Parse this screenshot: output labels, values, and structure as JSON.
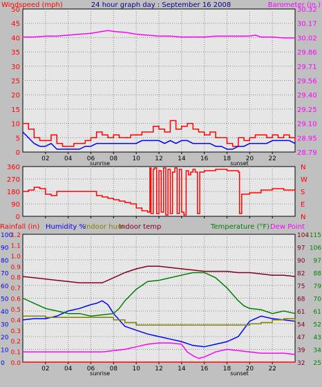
{
  "chart_data": [
    {
      "type": "line",
      "panel": "windspeed-barometer",
      "title": "24 hour graph day : September 16 2008",
      "ylabel_left": "Windspeed (mph)",
      "ylabel_right": "Barometer (in.)",
      "ylim_left": [
        0,
        50
      ],
      "ylim_right": [
        28.79,
        30.32
      ],
      "yticks_left": [
        "0",
        "5",
        "10",
        "15",
        "20",
        "25",
        "30",
        "35",
        "40",
        "45",
        "50"
      ],
      "yticks_right": [
        "28.79",
        "28.95",
        "29.10",
        "29.25",
        "29.40",
        "29.56",
        "29.71",
        "29.86",
        "30.02",
        "30.17",
        "30.32"
      ],
      "xticks": [
        "02",
        "04",
        "06",
        "08",
        "10",
        "12",
        "14",
        "16",
        "18",
        "20",
        "22"
      ],
      "x_markers": [
        {
          "label": "sunrise",
          "hour": 6.8
        },
        {
          "label": "sunset",
          "hour": 19.1
        }
      ],
      "series": [
        {
          "name": "Barometer",
          "axis": "right",
          "color": "#ff00ff",
          "x": [
            0,
            1,
            2,
            3,
            4,
            5,
            6,
            7,
            7.5,
            8,
            9,
            10,
            11,
            12,
            13,
            14,
            15,
            16,
            17,
            18,
            19,
            20,
            20.5,
            21,
            22,
            23,
            24
          ],
          "y": [
            30.02,
            30.02,
            30.03,
            30.03,
            30.04,
            30.05,
            30.06,
            30.08,
            30.09,
            30.08,
            30.07,
            30.05,
            30.04,
            30.03,
            30.03,
            30.02,
            30.02,
            30.02,
            30.03,
            30.03,
            30.03,
            30.03,
            30.04,
            30.02,
            30.02,
            30.01,
            30.01
          ]
        },
        {
          "name": "Wind Gust",
          "axis": "left",
          "color": "#ff0000",
          "x": [
            0,
            0.5,
            1,
            1.5,
            2,
            2.5,
            3,
            3.5,
            4,
            4.5,
            5,
            5.5,
            6,
            6.5,
            7,
            7.5,
            8,
            8.5,
            9,
            9.5,
            10,
            10.5,
            11,
            11.5,
            12,
            12.5,
            13,
            13.5,
            14,
            14.5,
            15,
            15.5,
            16,
            16.5,
            17,
            17.5,
            18,
            18.5,
            19,
            19.5,
            20,
            20.5,
            21,
            21.5,
            22,
            22.5,
            23,
            23.5,
            24
          ],
          "y": [
            10,
            8,
            5,
            4,
            4,
            6,
            3,
            2,
            2,
            3,
            3,
            4,
            5,
            7,
            6,
            5,
            6,
            5,
            5,
            6,
            6,
            7,
            7,
            9,
            8,
            7,
            11,
            8,
            9,
            10,
            8,
            7,
            6,
            7,
            5,
            5,
            3,
            2,
            5,
            4,
            5,
            6,
            6,
            5,
            6,
            5,
            6,
            5,
            4
          ]
        },
        {
          "name": "Wind Speed",
          "axis": "left",
          "color": "#0000ff",
          "x": [
            0,
            0.5,
            1,
            1.5,
            2,
            2.5,
            3,
            3.5,
            4,
            4.5,
            5,
            5.5,
            6,
            6.5,
            7,
            7.5,
            8,
            8.5,
            9,
            9.5,
            10,
            10.5,
            11,
            11.5,
            12,
            12.5,
            13,
            13.5,
            14,
            14.5,
            15,
            15.5,
            16,
            16.5,
            17,
            17.5,
            18,
            18.5,
            19,
            19.5,
            20,
            20.5,
            21,
            21.5,
            22,
            22.5,
            23,
            23.5,
            24
          ],
          "y": [
            7,
            5,
            3,
            2,
            2,
            3,
            1,
            1,
            1,
            1,
            1,
            2,
            2,
            3,
            3,
            3,
            3,
            3,
            3,
            3,
            3,
            4,
            4,
            4,
            4,
            3,
            4,
            3,
            4,
            4,
            3,
            3,
            3,
            3,
            2,
            2,
            1,
            1,
            2,
            2,
            3,
            3,
            3,
            3,
            4,
            4,
            4,
            4,
            3
          ]
        }
      ]
    },
    {
      "type": "line",
      "panel": "wind-direction",
      "ylim": [
        0,
        360
      ],
      "yticks_left": [
        "0",
        "90",
        "180",
        "270",
        "360"
      ],
      "yticks_right": [
        "N",
        "E",
        "S",
        "W",
        "N"
      ],
      "series": [
        {
          "name": "Wind Direction",
          "color": "#ff0000",
          "x": [
            0,
            0.5,
            1,
            1.5,
            2,
            2.5,
            3,
            4,
            5,
            6,
            6.5,
            7,
            7.5,
            8,
            8.5,
            9,
            9.5,
            10,
            10.5,
            11,
            11.2,
            11.3,
            11.5,
            11.6,
            11.8,
            12,
            12.2,
            12.4,
            12.6,
            12.8,
            13,
            13.2,
            13.4,
            13.6,
            13.8,
            14,
            14.2,
            14.4,
            14.6,
            14.8,
            15,
            15.2,
            15.4,
            15.6,
            16,
            17,
            18,
            18.5,
            19,
            19.1,
            19.3,
            20,
            21,
            22,
            23,
            24
          ],
          "y": [
            180,
            190,
            210,
            200,
            160,
            150,
            180,
            180,
            180,
            180,
            150,
            140,
            130,
            120,
            110,
            100,
            90,
            60,
            40,
            30,
            350,
            20,
            340,
            350,
            20,
            330,
            30,
            350,
            10,
            340,
            20,
            320,
            350,
            20,
            340,
            30,
            10,
            330,
            300,
            320,
            340,
            320,
            20,
            320,
            330,
            340,
            330,
            330,
            320,
            20,
            160,
            170,
            190,
            200,
            190,
            180
          ]
        }
      ]
    },
    {
      "type": "line",
      "panel": "rain-humidity-temperature",
      "legend_left": [
        "Rainfall (in)",
        "Humidity %",
        "Indoor hum",
        "Indoor temp"
      ],
      "legend_right": [
        "Temperature (°F)",
        "Dew Point"
      ],
      "yticks_rain": [
        "0.0",
        "0.1",
        "0.2",
        "0.3",
        "0.4",
        "0.5",
        "0.6",
        "0.7",
        "0.8",
        "0.9",
        "1.0",
        "1.1",
        "1.2"
      ],
      "yticks_humidity": [
        "0",
        "10",
        "20",
        "30",
        "40",
        "50",
        "60",
        "70",
        "80",
        "90",
        "100"
      ],
      "yticks_temp_right1": [
        "32",
        "39",
        "47",
        "54",
        "61",
        "68",
        "75",
        "82",
        "90",
        "97",
        "104"
      ],
      "yticks_temp_right2": [
        "25",
        "34",
        "43",
        "52",
        "61",
        "70",
        "79",
        "88",
        "97",
        "106",
        "115"
      ],
      "xticks": [
        "02",
        "04",
        "06",
        "08",
        "10",
        "12",
        "14",
        "16",
        "18",
        "20",
        "22"
      ],
      "x_markers": [
        {
          "label": "sunrise",
          "hour": 6.8
        },
        {
          "label": "sunset",
          "hour": 19.1
        }
      ],
      "series": [
        {
          "name": "Rainfall",
          "color": "#ff0000",
          "axis": "rain",
          "x": [
            0,
            24
          ],
          "y": [
            0,
            0
          ]
        },
        {
          "name": "Humidity %",
          "color": "#0000ff",
          "axis": "humidity",
          "x": [
            0,
            1,
            2,
            3,
            4,
            5,
            6,
            6.5,
            7,
            7.5,
            8,
            9,
            10,
            11,
            12,
            13,
            14,
            15,
            16,
            17,
            18,
            19,
            20,
            21,
            22,
            23,
            24
          ],
          "y": [
            33,
            34,
            34,
            36,
            40,
            42,
            45,
            46,
            48,
            45,
            38,
            28,
            25,
            22,
            20,
            18,
            16,
            13,
            12,
            14,
            16,
            20,
            32,
            36,
            34,
            33,
            32
          ]
        },
        {
          "name": "Indoor hum",
          "color": "#808000",
          "axis": "humidity",
          "x": [
            0,
            1,
            2,
            3,
            4,
            5,
            6,
            7,
            8,
            9,
            10,
            11,
            12,
            13,
            14,
            15,
            16,
            17,
            18,
            19,
            20,
            21,
            22,
            23,
            24
          ],
          "y": [
            36,
            36,
            35,
            35,
            35,
            35,
            35,
            35,
            33,
            31,
            29,
            29,
            29,
            29,
            29,
            29,
            29,
            29,
            29,
            29,
            30,
            31,
            33,
            34,
            32
          ]
        },
        {
          "name": "Indoor temp",
          "color": "#800020",
          "axis": "humidity",
          "x": [
            0,
            1,
            2,
            3,
            4,
            5,
            6,
            7,
            8,
            9,
            10,
            11,
            12,
            13,
            14,
            15,
            16,
            17,
            18,
            19,
            20,
            21,
            22,
            23,
            24
          ],
          "y": [
            67,
            66,
            65,
            64,
            63,
            62,
            62,
            62,
            66,
            70,
            73,
            75,
            75,
            74,
            73,
            72,
            71,
            71,
            71,
            70,
            70,
            69,
            68,
            68,
            67
          ]
        },
        {
          "name": "Temperature",
          "color": "#008000",
          "axis": "humidity",
          "x": [
            0,
            1,
            2,
            3,
            4,
            5,
            6,
            7,
            8,
            8.5,
            9,
            10,
            11,
            12,
            13,
            14,
            15,
            16,
            17,
            18,
            19,
            19.5,
            20,
            21,
            22,
            23,
            24
          ],
          "y": [
            50,
            46,
            42,
            40,
            38,
            38,
            36,
            37,
            38,
            42,
            48,
            57,
            63,
            64,
            66,
            68,
            70,
            70,
            66,
            58,
            48,
            44,
            42,
            41,
            38,
            40,
            38
          ]
        },
        {
          "name": "Dew Point",
          "color": "#ff00ff",
          "axis": "humidity",
          "x": [
            0,
            1,
            2,
            3,
            4,
            5,
            6,
            7,
            8,
            9,
            10,
            11,
            12,
            13,
            14,
            14.5,
            15,
            15.5,
            16,
            17,
            18,
            19,
            20,
            21,
            22,
            23,
            24
          ],
          "y": [
            8,
            8,
            8,
            8,
            8,
            8,
            8,
            8,
            9,
            10,
            12,
            14,
            15,
            15,
            14,
            8,
            5,
            3,
            4,
            8,
            10,
            9,
            8,
            7,
            7,
            7,
            6
          ]
        }
      ]
    }
  ]
}
